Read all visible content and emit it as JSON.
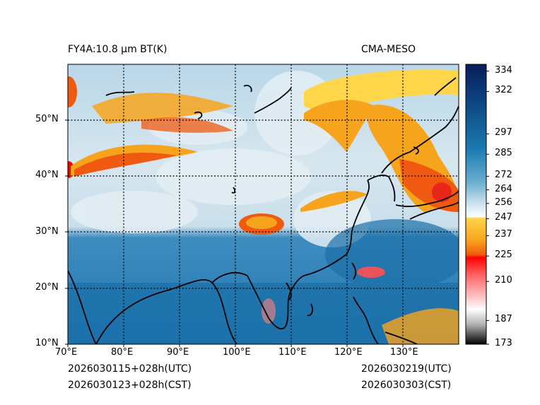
{
  "title_left": "FY4A:10.8 μm BT(K)",
  "title_right": "CMA-MESO",
  "footer": {
    "init_utc": "2026030115+028h(UTC)",
    "init_cst": "2026030123+028h(CST)",
    "valid_utc": "2026030219(UTC)",
    "valid_cst": "2026030303(CST)"
  },
  "map": {
    "lon_range": [
      70,
      140
    ],
    "lat_range": [
      10,
      60
    ],
    "lon_ticks": [
      {
        "value": 70,
        "label": "70°E"
      },
      {
        "value": 80,
        "label": "80°E"
      },
      {
        "value": 90,
        "label": "90°E"
      },
      {
        "value": 100,
        "label": "100°E"
      },
      {
        "value": 110,
        "label": "110°E"
      },
      {
        "value": 120,
        "label": "120°E"
      },
      {
        "value": 130,
        "label": "130°E"
      }
    ],
    "lat_ticks": [
      {
        "value": 10,
        "label": "10°N"
      },
      {
        "value": 20,
        "label": "20°N"
      },
      {
        "value": 30,
        "label": "30°N"
      },
      {
        "value": 40,
        "label": "40°N"
      },
      {
        "value": 50,
        "label": "50°N"
      }
    ],
    "grid_lons": [
      80,
      90,
      100,
      110,
      120,
      130
    ],
    "grid_lats": [
      20,
      30,
      40,
      50
    ]
  },
  "colorbar": {
    "min": 173,
    "max": 338,
    "ticks": [
      {
        "value": 334,
        "label": "334"
      },
      {
        "value": 322,
        "label": "322"
      },
      {
        "value": 297,
        "label": "297"
      },
      {
        "value": 285,
        "label": "285"
      },
      {
        "value": 272,
        "label": "272"
      },
      {
        "value": 264,
        "label": "264"
      },
      {
        "value": 256,
        "label": "256"
      },
      {
        "value": 247,
        "label": "247"
      },
      {
        "value": 237,
        "label": "237"
      },
      {
        "value": 225,
        "label": "225"
      },
      {
        "value": 210,
        "label": "210"
      },
      {
        "value": 187,
        "label": "187"
      },
      {
        "value": 173,
        "label": "173"
      }
    ]
  }
}
